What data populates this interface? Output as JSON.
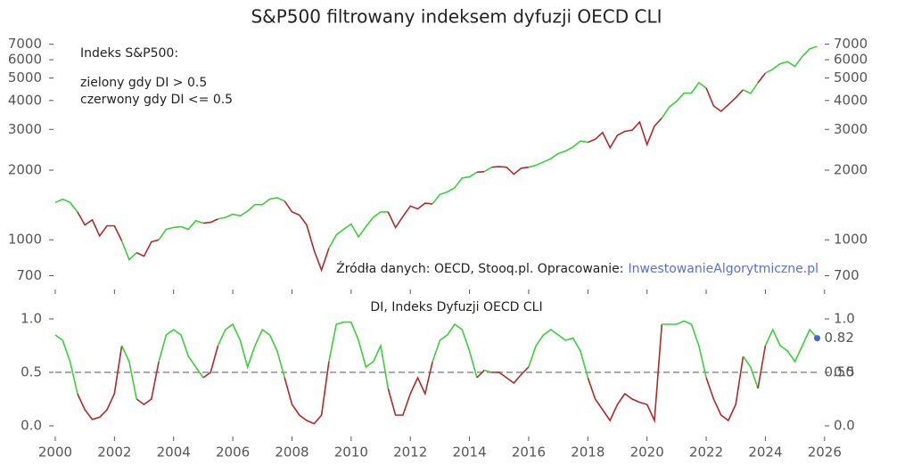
{
  "chart_data": [
    {
      "type": "line",
      "title": "S&P500 filtrowany indeksem dyfuzji OECD CLI",
      "annotations": [
        "Indeks S&P500:",
        "zielony gdy DI > 0.5",
        "czerwony gdy DI <= 0.5"
      ],
      "source": "Źródła danych: OECD, Stooq.pl. Opracowanie:",
      "source_link": "InwestowanieAlgorytmiczne.pl",
      "log_scale": true,
      "colors": {
        "above": "#3ccf3c",
        "below": "#b02a2a"
      },
      "x": [
        2000,
        2000.25,
        2000.5,
        2000.75,
        2001,
        2001.25,
        2001.5,
        2001.75,
        2002,
        2002.25,
        2002.5,
        2002.75,
        2003,
        2003.25,
        2003.5,
        2003.75,
        2004,
        2004.25,
        2004.5,
        2004.75,
        2005,
        2005.25,
        2005.5,
        2005.75,
        2006,
        2006.25,
        2006.5,
        2006.75,
        2007,
        2007.25,
        2007.5,
        2007.75,
        2008,
        2008.25,
        2008.5,
        2008.75,
        2009,
        2009.25,
        2009.5,
        2009.75,
        2010,
        2010.25,
        2010.5,
        2010.75,
        2011,
        2011.25,
        2011.5,
        2011.75,
        2012,
        2012.25,
        2012.5,
        2012.75,
        2013,
        2013.25,
        2013.5,
        2013.75,
        2014,
        2014.25,
        2014.5,
        2014.75,
        2015,
        2015.25,
        2015.5,
        2015.75,
        2016,
        2016.25,
        2016.5,
        2016.75,
        2017,
        2017.25,
        2017.5,
        2017.75,
        2018,
        2018.25,
        2018.5,
        2018.75,
        2019,
        2019.25,
        2019.5,
        2019.75,
        2020,
        2020.25,
        2020.5,
        2020.75,
        2021,
        2021.25,
        2021.5,
        2021.75,
        2022,
        2022.25,
        2022.5,
        2022.75,
        2023,
        2023.25,
        2023.5,
        2023.75,
        2024,
        2024.25,
        2024.5,
        2024.75,
        2025,
        2025.25,
        2025.5,
        2025.75
      ],
      "values": [
        1450,
        1500,
        1450,
        1320,
        1160,
        1220,
        1040,
        1150,
        1150,
        990,
        820,
        880,
        850,
        980,
        1000,
        1110,
        1130,
        1140,
        1110,
        1210,
        1180,
        1190,
        1230,
        1250,
        1290,
        1270,
        1330,
        1420,
        1420,
        1500,
        1520,
        1470,
        1320,
        1280,
        1160,
        900,
        740,
        920,
        1050,
        1110,
        1170,
        1030,
        1140,
        1250,
        1320,
        1320,
        1130,
        1260,
        1400,
        1360,
        1440,
        1430,
        1570,
        1610,
        1680,
        1850,
        1870,
        1960,
        1970,
        2060,
        2070,
        2060,
        1920,
        2040,
        2060,
        2100,
        2170,
        2240,
        2360,
        2420,
        2520,
        2670,
        2640,
        2720,
        2910,
        2500,
        2830,
        2940,
        2980,
        3230,
        2580,
        3100,
        3360,
        3750,
        3970,
        4300,
        4310,
        4770,
        4530,
        3790,
        3590,
        3840,
        4110,
        4450,
        4290,
        4770,
        5250,
        5460,
        5760,
        5880,
        5610,
        6200,
        6690,
        6850
      ],
      "ylim": [
        610,
        7970
      ],
      "yticks": [
        700,
        1000,
        2000,
        3000,
        4000,
        5000,
        6000,
        7000
      ]
    },
    {
      "type": "line",
      "title": "DI, Indeks Dyfuzji OECD CLI",
      "x": [
        2000,
        2000.25,
        2000.5,
        2000.75,
        2001,
        2001.25,
        2001.5,
        2001.75,
        2002,
        2002.25,
        2002.5,
        2002.75,
        2003,
        2003.25,
        2003.5,
        2003.75,
        2004,
        2004.25,
        2004.5,
        2004.75,
        2005,
        2005.25,
        2005.5,
        2005.75,
        2006,
        2006.25,
        2006.5,
        2006.75,
        2007,
        2007.25,
        2007.5,
        2007.75,
        2008,
        2008.25,
        2008.5,
        2008.75,
        2009,
        2009.25,
        2009.5,
        2009.75,
        2010,
        2010.25,
        2010.5,
        2010.75,
        2011,
        2011.25,
        2011.5,
        2011.75,
        2012,
        2012.25,
        2012.5,
        2012.75,
        2013,
        2013.25,
        2013.5,
        2013.75,
        2014,
        2014.25,
        2014.5,
        2014.75,
        2015,
        2015.25,
        2015.5,
        2015.75,
        2016,
        2016.25,
        2016.5,
        2016.75,
        2017,
        2017.25,
        2017.5,
        2017.75,
        2018,
        2018.25,
        2018.5,
        2018.75,
        2019,
        2019.25,
        2019.5,
        2019.75,
        2020,
        2020.25,
        2020.5,
        2020.75,
        2021,
        2021.25,
        2021.5,
        2021.75,
        2022,
        2022.25,
        2022.5,
        2022.75,
        2023,
        2023.25,
        2023.5,
        2023.75,
        2024,
        2024.25,
        2024.5,
        2024.75,
        2025,
        2025.25,
        2025.5,
        2025.75
      ],
      "values": [
        0.85,
        0.8,
        0.6,
        0.3,
        0.15,
        0.06,
        0.08,
        0.15,
        0.3,
        0.75,
        0.6,
        0.25,
        0.2,
        0.25,
        0.6,
        0.85,
        0.9,
        0.85,
        0.65,
        0.55,
        0.45,
        0.5,
        0.75,
        0.9,
        0.95,
        0.8,
        0.55,
        0.75,
        0.9,
        0.85,
        0.7,
        0.45,
        0.2,
        0.1,
        0.05,
        0.02,
        0.1,
        0.6,
        0.95,
        0.97,
        0.97,
        0.8,
        0.55,
        0.6,
        0.75,
        0.35,
        0.1,
        0.1,
        0.3,
        0.45,
        0.3,
        0.6,
        0.8,
        0.85,
        0.95,
        0.9,
        0.7,
        0.45,
        0.52,
        0.5,
        0.5,
        0.45,
        0.4,
        0.48,
        0.55,
        0.75,
        0.85,
        0.9,
        0.85,
        0.8,
        0.82,
        0.7,
        0.45,
        0.25,
        0.15,
        0.05,
        0.2,
        0.3,
        0.25,
        0.22,
        0.2,
        0.05,
        0.95,
        0.95,
        0.95,
        0.98,
        0.95,
        0.75,
        0.45,
        0.25,
        0.1,
        0.05,
        0.2,
        0.65,
        0.55,
        0.35,
        0.75,
        0.9,
        0.75,
        0.7,
        0.6,
        0.75,
        0.9,
        0.82
      ],
      "last_point_color": "#4a66c8",
      "reference_line": {
        "value": 0.5,
        "label": "0.50"
      },
      "ylim": [
        -0.1,
        1.15
      ],
      "yticks": [
        {
          "value": 0,
          "label": "0.0"
        },
        0.5,
        {
          "value": 1,
          "label": "1.0"
        }
      ],
      "xlim": [
        1999.79,
        2026.91
      ],
      "xticks": [
        2000,
        2002,
        2004,
        2006,
        2008,
        2010,
        2012,
        2014,
        2016,
        2018,
        2020,
        2022,
        2024,
        2026
      ]
    }
  ]
}
